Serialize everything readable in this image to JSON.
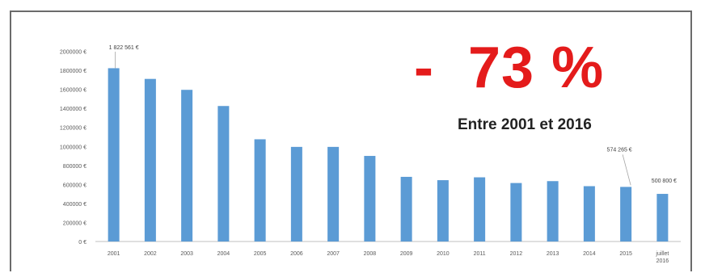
{
  "headline": {
    "value": "-  73 %",
    "subtitle": "Entre 2001 et 2016"
  },
  "chart_data": {
    "type": "bar",
    "title": "",
    "xlabel": "",
    "ylabel": "",
    "ylim": [
      0,
      2200000
    ],
    "y_ticks": [
      0,
      200000,
      400000,
      600000,
      800000,
      1000000,
      1200000,
      1400000,
      1600000,
      1800000,
      2000000
    ],
    "y_tick_labels": [
      "0 €",
      "200000 €",
      "400000 €",
      "600000 €",
      "800000 €",
      "1000000 €",
      "1200000 €",
      "1400000 €",
      "1600000 €",
      "1800000 €",
      "2000000 €"
    ],
    "categories": [
      "2001",
      "2002",
      "2003",
      "2004",
      "2005",
      "2006",
      "2007",
      "2008",
      "2009",
      "2010",
      "2011",
      "2012",
      "2013",
      "2014",
      "2015",
      "juillet 2016"
    ],
    "values": [
      1822561,
      1710000,
      1595000,
      1425000,
      1075000,
      995000,
      995000,
      900000,
      680000,
      645000,
      675000,
      615000,
      635000,
      582000,
      574265,
      500800
    ],
    "data_labels": [
      {
        "index": 0,
        "text": "1 822 561 €"
      },
      {
        "index": 14,
        "text": "574 265 €"
      },
      {
        "index": 15,
        "text": "500 800 €"
      }
    ],
    "bar_color": "#5b9bd5",
    "grid": false,
    "legend": "none"
  }
}
